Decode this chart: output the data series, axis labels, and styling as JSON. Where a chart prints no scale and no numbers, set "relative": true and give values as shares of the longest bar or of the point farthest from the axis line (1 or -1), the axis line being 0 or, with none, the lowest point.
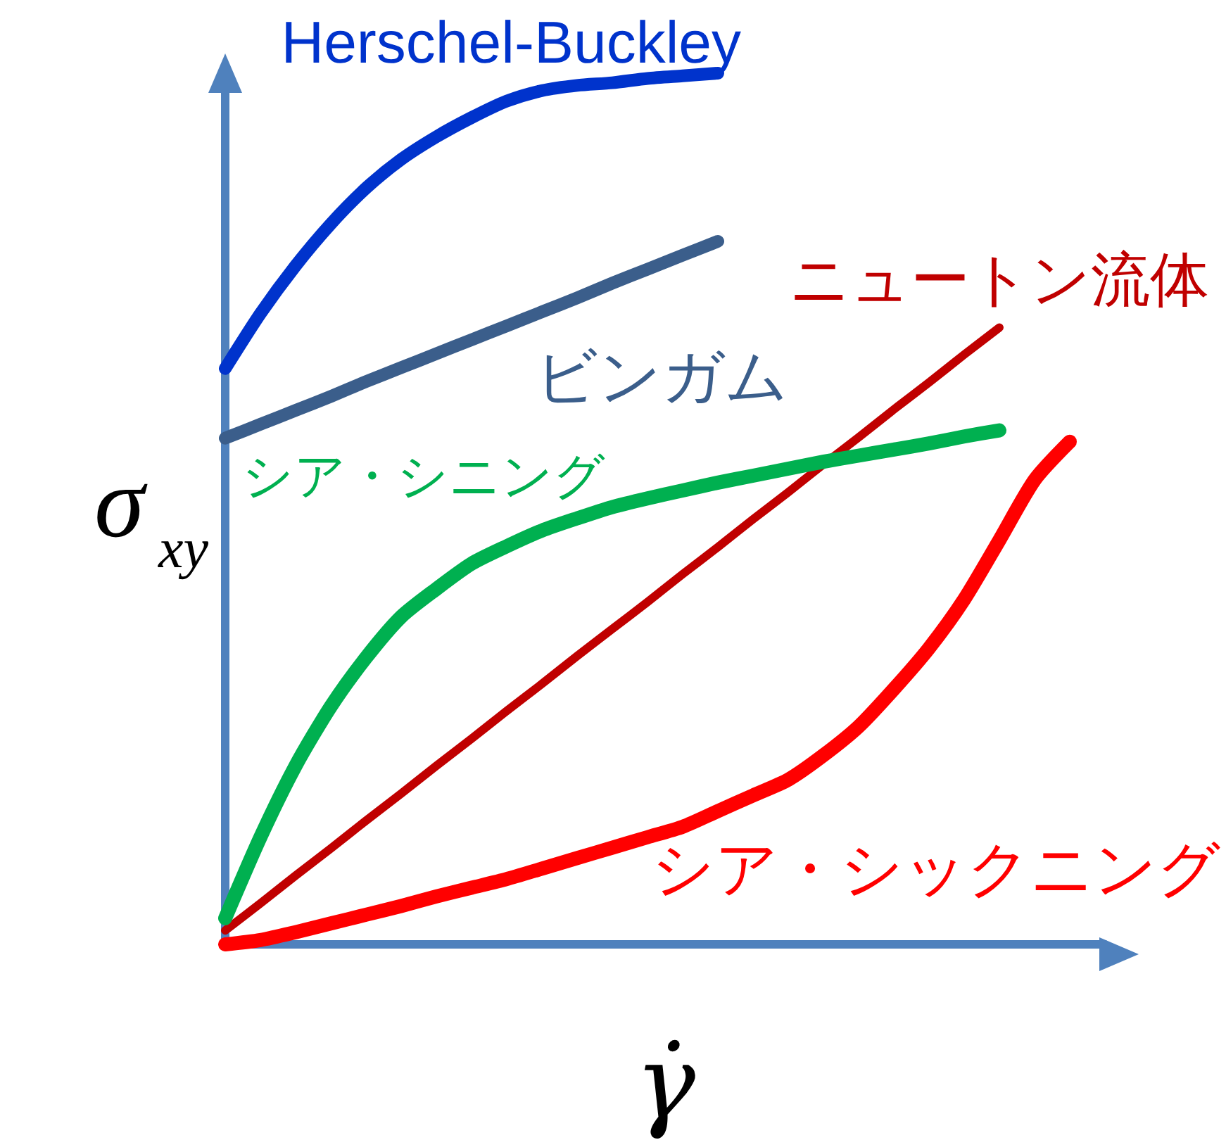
{
  "chart_data": {
    "type": "line",
    "relative": true,
    "xlabel": "γ̇",
    "ylabel": "σ$_{xy}$",
    "categories": [
      null,
      null,
      null,
      null,
      null,
      null,
      null,
      null,
      null,
      null,
      null,
      null,
      null,
      null,
      null,
      null,
      null,
      null,
      null,
      null,
      null,
      null,
      null,
      null,
      null,
      null
    ],
    "series": [
      {
        "name": "Herschel-Buckley",
        "color": "#0033cc",
        "values": [
          0.661,
          0.724,
          0.779,
          0.827,
          0.868,
          0.901,
          0.927,
          0.949,
          0.968,
          0.98,
          0.986,
          0.989,
          0.994,
          0.997,
          1.0,
          null,
          null,
          null,
          null,
          null,
          null,
          null,
          null,
          null,
          null,
          null
        ]
      },
      {
        "name": "ビンガム",
        "color": "#3b5e8b",
        "values": [
          0.581,
          0.597,
          0.613,
          0.629,
          0.646,
          0.662,
          0.678,
          0.694,
          0.71,
          0.726,
          0.742,
          0.759,
          0.775,
          0.791,
          0.807,
          null,
          null,
          null,
          null,
          null,
          null,
          null,
          null,
          null,
          null,
          null
        ]
      },
      {
        "name": "ニュートン流体",
        "color": "#c00000",
        "values": [
          0.016,
          0.047,
          0.079,
          0.11,
          0.142,
          0.173,
          0.205,
          0.236,
          0.268,
          0.299,
          0.331,
          0.362,
          0.393,
          0.425,
          0.456,
          0.488,
          0.519,
          0.551,
          0.582,
          0.614,
          0.645,
          0.677,
          0.708,
          null,
          null,
          null
        ]
      },
      {
        "name": "シア・シニング",
        "color": "#00b050",
        "values": [
          0.03,
          0.123,
          0.205,
          0.273,
          0.329,
          0.376,
          0.408,
          0.437,
          0.457,
          0.475,
          0.489,
          0.502,
          0.512,
          0.521,
          0.53,
          0.538,
          0.546,
          0.554,
          0.561,
          0.568,
          0.575,
          0.583,
          0.59,
          null,
          null,
          null
        ]
      },
      {
        "name": "シア・シックニング",
        "color": "#ff0000",
        "values": [
          0,
          0.005,
          0.014,
          0.024,
          0.034,
          0.044,
          0.055,
          0.065,
          0.075,
          0.087,
          0.099,
          0.111,
          0.123,
          0.135,
          0.153,
          0.171,
          0.189,
          0.217,
          0.25,
          0.293,
          0.34,
          0.396,
          0.464,
          0.533,
          0.577,
          null
        ]
      }
    ]
  }
}
